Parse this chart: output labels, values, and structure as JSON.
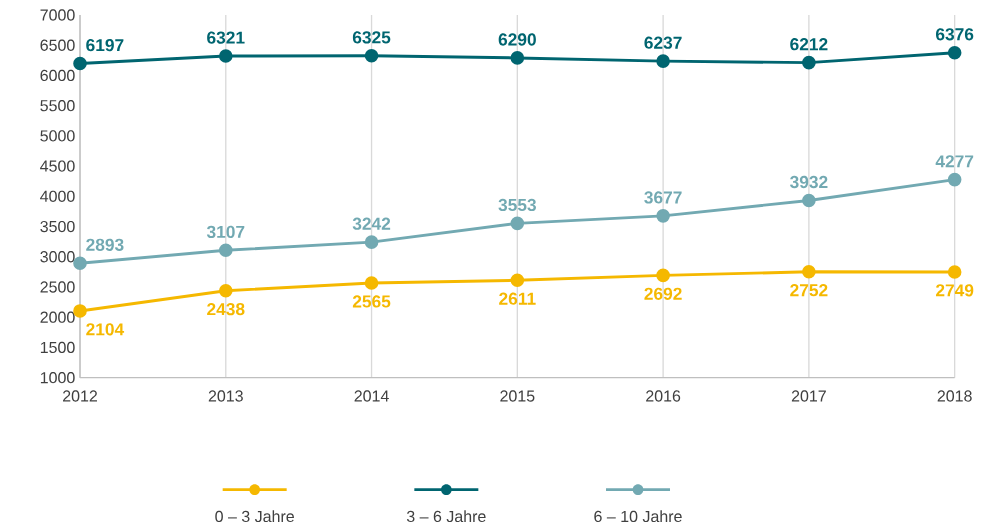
{
  "chart_data": {
    "type": "line",
    "x": [
      2012,
      2013,
      2014,
      2015,
      2016,
      2017,
      2018
    ],
    "series": [
      {
        "name": "0 – 3 Jahre",
        "color": "#f5b800",
        "values": [
          2104,
          2438,
          2565,
          2611,
          2692,
          2752,
          2749
        ]
      },
      {
        "name": "3 – 6 Jahre",
        "color": "#006570",
        "values": [
          6197,
          6321,
          6325,
          6290,
          6237,
          6212,
          6376
        ]
      },
      {
        "name": "6 – 10 Jahre",
        "color": "#72a9b2",
        "values": [
          2893,
          3107,
          3242,
          3553,
          3677,
          3932,
          4277
        ]
      }
    ],
    "xlim": [
      2012,
      2018
    ],
    "xticks": [
      2012,
      2013,
      2014,
      2015,
      2016,
      2017,
      2018
    ],
    "ylim": [
      1000,
      7000
    ],
    "yticks": [
      1000,
      1500,
      2000,
      2500,
      3000,
      3500,
      4000,
      4500,
      5000,
      5500,
      6000,
      6500,
      7000
    ],
    "grid": "x",
    "legend": "bottom",
    "marker": "circle",
    "line_style": "solid",
    "data_labels": true
  }
}
